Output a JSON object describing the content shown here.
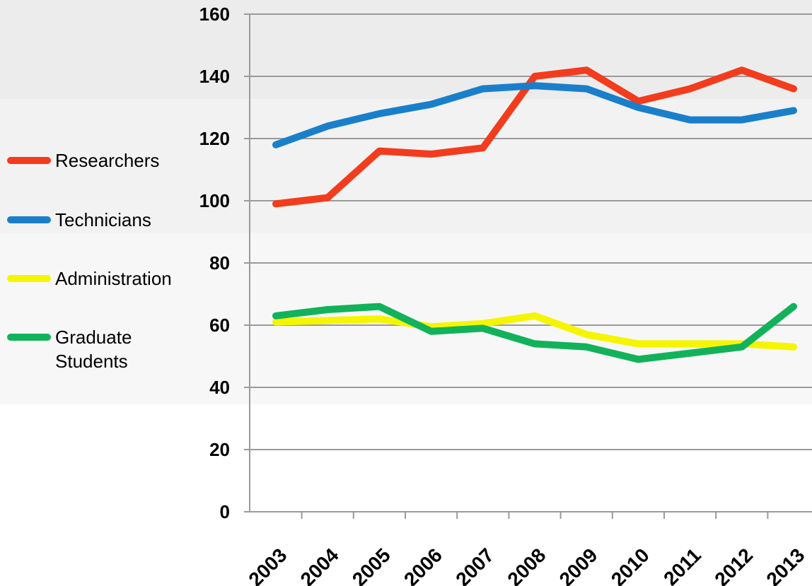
{
  "chart_data": {
    "type": "line",
    "categories": [
      "2003",
      "2004",
      "2005",
      "2006",
      "2007",
      "2008",
      "2009",
      "2010",
      "2011",
      "2012",
      "2013"
    ],
    "series": [
      {
        "name": "Researchers",
        "color": "#f33c1d",
        "values": [
          99,
          101,
          116,
          115,
          117,
          140,
          142,
          132,
          136,
          142,
          136
        ]
      },
      {
        "name": "Technicians",
        "color": "#1a7fcb",
        "values": [
          118,
          124,
          128,
          131,
          136,
          137,
          136,
          130,
          126,
          126,
          129
        ]
      },
      {
        "name": "Administration",
        "color": "#f5f500",
        "values": [
          61,
          61.5,
          62,
          59.5,
          60.5,
          63,
          57,
          54,
          54,
          54,
          53
        ]
      },
      {
        "name": "Graduate Students",
        "color": "#12b25a",
        "values": [
          63,
          65,
          66,
          58,
          59,
          54,
          53,
          49,
          51,
          53,
          66
        ]
      }
    ],
    "ylim": [
      0,
      160
    ],
    "yticks": [
      0,
      20,
      40,
      60,
      80,
      100,
      120,
      140,
      160
    ],
    "grid": true,
    "legend": "left"
  }
}
